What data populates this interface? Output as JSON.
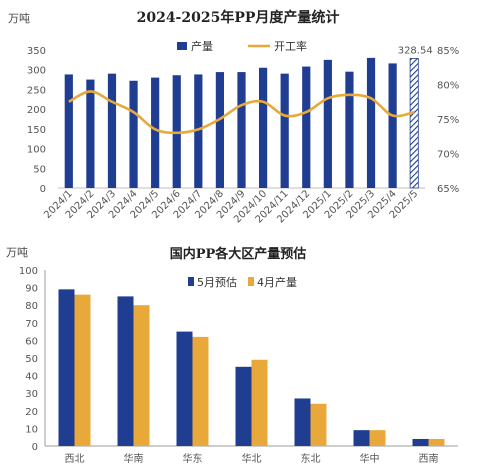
{
  "chart_data": [
    {
      "type": "bar",
      "title": "2024-2025年PP月度产量统计",
      "ylabel": "万吨",
      "categories": [
        "2024/1",
        "2024/2",
        "2024/3",
        "2024/4",
        "2024/5",
        "2024/6",
        "2024/7",
        "2024/8",
        "2024/9",
        "2024/10",
        "2024/11",
        "2024/12",
        "2025/1",
        "2025/2",
        "2025/3",
        "2025/4",
        "2025/5"
      ],
      "series": [
        {
          "name": "产量",
          "type": "bar",
          "axis": "left",
          "color": "#1f3d91",
          "values": [
            288,
            275,
            290,
            272,
            280,
            286,
            288,
            294,
            294,
            305,
            290,
            308,
            325,
            295,
            330,
            316,
            328.54
          ]
        },
        {
          "name": "开工率",
          "type": "line",
          "axis": "right",
          "color": "#e8a83a",
          "values": [
            77.5,
            79,
            77.5,
            76,
            73.5,
            73,
            73.5,
            75,
            77,
            77.5,
            75.5,
            76,
            78,
            78.5,
            78,
            75.5,
            76
          ]
        }
      ],
      "ylim": [
        0,
        350
      ],
      "y_ticks": [
        0,
        50,
        100,
        150,
        200,
        250,
        300,
        350
      ],
      "y2lim": [
        65,
        85
      ],
      "y2_ticks": [
        "65%",
        "70%",
        "75%",
        "80%",
        "85%"
      ],
      "last_bar_label": "328.54",
      "last_bar_style": "hatched",
      "legend_position": "top-center",
      "grid": false
    },
    {
      "type": "bar",
      "title": "国内PP各大区产量预估",
      "ylabel": "万吨",
      "categories": [
        "西北",
        "华南",
        "华东",
        "华北",
        "东北",
        "华中",
        "西南"
      ],
      "series": [
        {
          "name": "5月预估",
          "color": "#1f3d91",
          "values": [
            89,
            85,
            65,
            45,
            27,
            9,
            4
          ]
        },
        {
          "name": "4月产量",
          "color": "#e8a83a",
          "values": [
            86,
            80,
            62,
            49,
            24,
            9,
            4
          ]
        }
      ],
      "ylim": [
        0,
        100
      ],
      "y_ticks": [
        0,
        10,
        20,
        30,
        40,
        50,
        60,
        70,
        80,
        90,
        100
      ],
      "legend_position": "top-right",
      "grid": false
    }
  ]
}
